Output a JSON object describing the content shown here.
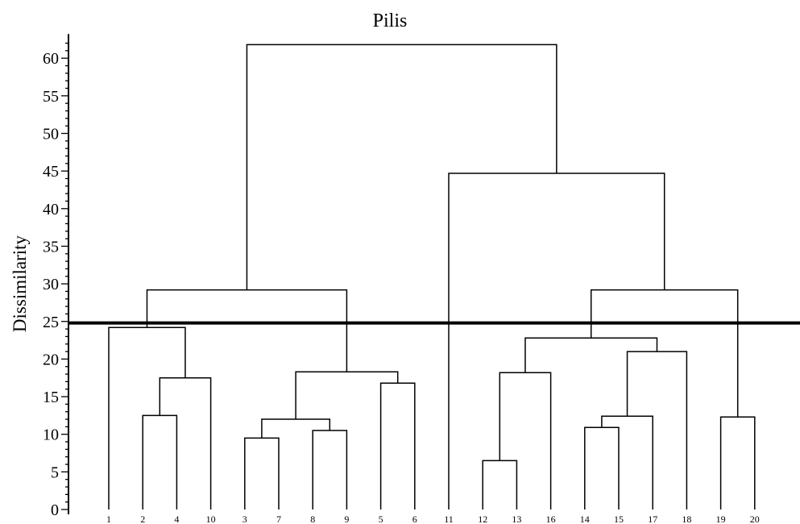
{
  "chart_data": {
    "type": "dendrogram",
    "title": "Pilis",
    "ylabel": "Dissimilarity",
    "xlabel": "",
    "ylim": [
      0,
      63
    ],
    "yticks": [
      0,
      5,
      10,
      15,
      20,
      25,
      30,
      35,
      40,
      45,
      50,
      55,
      60
    ],
    "leaf_order": [
      "1",
      "2",
      "4",
      "10",
      "3",
      "7",
      "8",
      "9",
      "5",
      "6",
      "11",
      "12",
      "13",
      "16",
      "14",
      "15",
      "17",
      "18",
      "19",
      "20"
    ],
    "merges": [
      {
        "left": "2",
        "right": "4",
        "height": 12.5
      },
      {
        "left": "2-4",
        "right": "10",
        "height": 17.5
      },
      {
        "left": "1",
        "right": "2-4-10",
        "height": 24.2
      },
      {
        "left": "3",
        "right": "7",
        "height": 9.5
      },
      {
        "left": "8",
        "right": "9",
        "height": 10.5
      },
      {
        "left": "3-7",
        "right": "8-9",
        "height": 12.0
      },
      {
        "left": "5",
        "right": "6",
        "height": 16.8
      },
      {
        "left": "3-7-8-9",
        "right": "5-6",
        "height": 18.3
      },
      {
        "left": "1-2-4-10",
        "right": "3-7-8-9-5-6",
        "height": 29.2
      },
      {
        "left": "12",
        "right": "13",
        "height": 6.5
      },
      {
        "left": "12-13",
        "right": "16",
        "height": 18.2
      },
      {
        "left": "14",
        "right": "15",
        "height": 10.9
      },
      {
        "left": "14-15",
        "right": "17",
        "height": 12.4
      },
      {
        "left": "14-15-17",
        "right": "18",
        "height": 21.0
      },
      {
        "left": "12-13-16",
        "right": "14-15-17-18",
        "height": 22.8
      },
      {
        "left": "19",
        "right": "20",
        "height": 12.3
      },
      {
        "left": "12-13-16-14-15-17-18",
        "right": "19-20",
        "height": 29.2
      },
      {
        "left": "11",
        "right": "12-13-16-14-15-17-18-19-20",
        "height": 44.7
      },
      {
        "left": "1-2-4-10-3-7-8-9-5-6",
        "right": "11-12-13-16-14-15-17-18-19-20",
        "height": 61.8
      }
    ],
    "cut_line": 24.8
  }
}
